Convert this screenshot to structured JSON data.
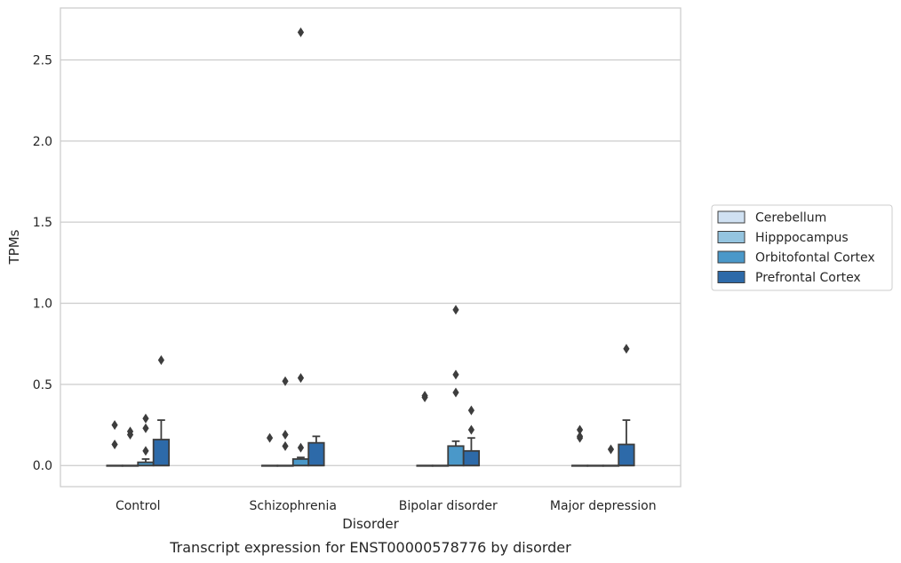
{
  "chart_data": {
    "type": "box",
    "caption": "Transcript expression for ENST00000578776 by disorder",
    "xlabel": "Disorder",
    "ylabel": "TPMs",
    "ylim": [
      -0.13,
      2.82
    ],
    "yticks": [
      0.0,
      0.5,
      1.0,
      1.5,
      2.0,
      2.5
    ],
    "ytick_labels": [
      "0.0",
      "0.5",
      "1.0",
      "1.5",
      "2.0",
      "2.5"
    ],
    "grid": "horizontal",
    "legend_position": "right",
    "categories": [
      "Control",
      "Schizophrenia",
      "Bipolar disorder",
      "Major depression"
    ],
    "series": [
      {
        "name": "Cerebellum",
        "color": "#d0e1f2",
        "boxes": [
          {
            "q1": 0.0,
            "median": 0.0,
            "q3": 0.0,
            "whislo": 0.0,
            "whishi": 0.0,
            "fliers": [
              0.25,
              0.13
            ]
          },
          {
            "q1": 0.0,
            "median": 0.0,
            "q3": 0.0,
            "whislo": 0.0,
            "whishi": 0.0,
            "fliers": [
              0.17
            ]
          },
          {
            "q1": 0.0,
            "median": 0.0,
            "q3": 0.0,
            "whislo": 0.0,
            "whishi": 0.0,
            "fliers": [
              0.43,
              0.42
            ]
          },
          {
            "q1": 0.0,
            "median": 0.0,
            "q3": 0.0,
            "whislo": 0.0,
            "whishi": 0.0,
            "fliers": [
              0.22,
              0.17,
              0.18
            ]
          }
        ]
      },
      {
        "name": "Hipppocampus",
        "color": "#94c4df",
        "boxes": [
          {
            "q1": 0.0,
            "median": 0.0,
            "q3": 0.0,
            "whislo": 0.0,
            "whishi": 0.0,
            "fliers": [
              0.21,
              0.19
            ]
          },
          {
            "q1": 0.0,
            "median": 0.0,
            "q3": 0.0,
            "whislo": 0.0,
            "whishi": 0.0,
            "fliers": [
              0.52,
              0.19,
              0.12
            ]
          },
          {
            "q1": 0.0,
            "median": 0.0,
            "q3": 0.0,
            "whislo": 0.0,
            "whishi": 0.0,
            "fliers": []
          },
          {
            "q1": 0.0,
            "median": 0.0,
            "q3": 0.0,
            "whislo": 0.0,
            "whishi": 0.0,
            "fliers": []
          }
        ]
      },
      {
        "name": "Orbitofontal Cortex",
        "color": "#4a98c9",
        "boxes": [
          {
            "q1": 0.0,
            "median": 0.0,
            "q3": 0.02,
            "whislo": 0.0,
            "whishi": 0.04,
            "fliers": [
              0.29,
              0.23,
              0.09
            ]
          },
          {
            "q1": 0.0,
            "median": 0.0,
            "q3": 0.04,
            "whislo": 0.0,
            "whishi": 0.05,
            "fliers": [
              2.67,
              0.54,
              0.11
            ]
          },
          {
            "q1": 0.0,
            "median": 0.0,
            "q3": 0.12,
            "whislo": 0.0,
            "whishi": 0.15,
            "fliers": [
              0.96,
              0.56,
              0.45
            ]
          },
          {
            "q1": 0.0,
            "median": 0.0,
            "q3": 0.0,
            "whislo": 0.0,
            "whishi": 0.0,
            "fliers": [
              0.1
            ]
          }
        ]
      },
      {
        "name": "Prefrontal Cortex",
        "color": "#2d6aa9",
        "boxes": [
          {
            "q1": 0.0,
            "median": 0.0,
            "q3": 0.16,
            "whislo": 0.0,
            "whishi": 0.28,
            "fliers": [
              0.65
            ]
          },
          {
            "q1": 0.0,
            "median": 0.0,
            "q3": 0.14,
            "whislo": 0.0,
            "whishi": 0.18,
            "fliers": []
          },
          {
            "q1": 0.0,
            "median": 0.0,
            "q3": 0.09,
            "whislo": 0.0,
            "whishi": 0.17,
            "fliers": [
              0.34,
              0.22
            ]
          },
          {
            "q1": 0.0,
            "median": 0.0,
            "q3": 0.13,
            "whislo": 0.0,
            "whishi": 0.28,
            "fliers": [
              0.72
            ]
          }
        ]
      }
    ]
  }
}
